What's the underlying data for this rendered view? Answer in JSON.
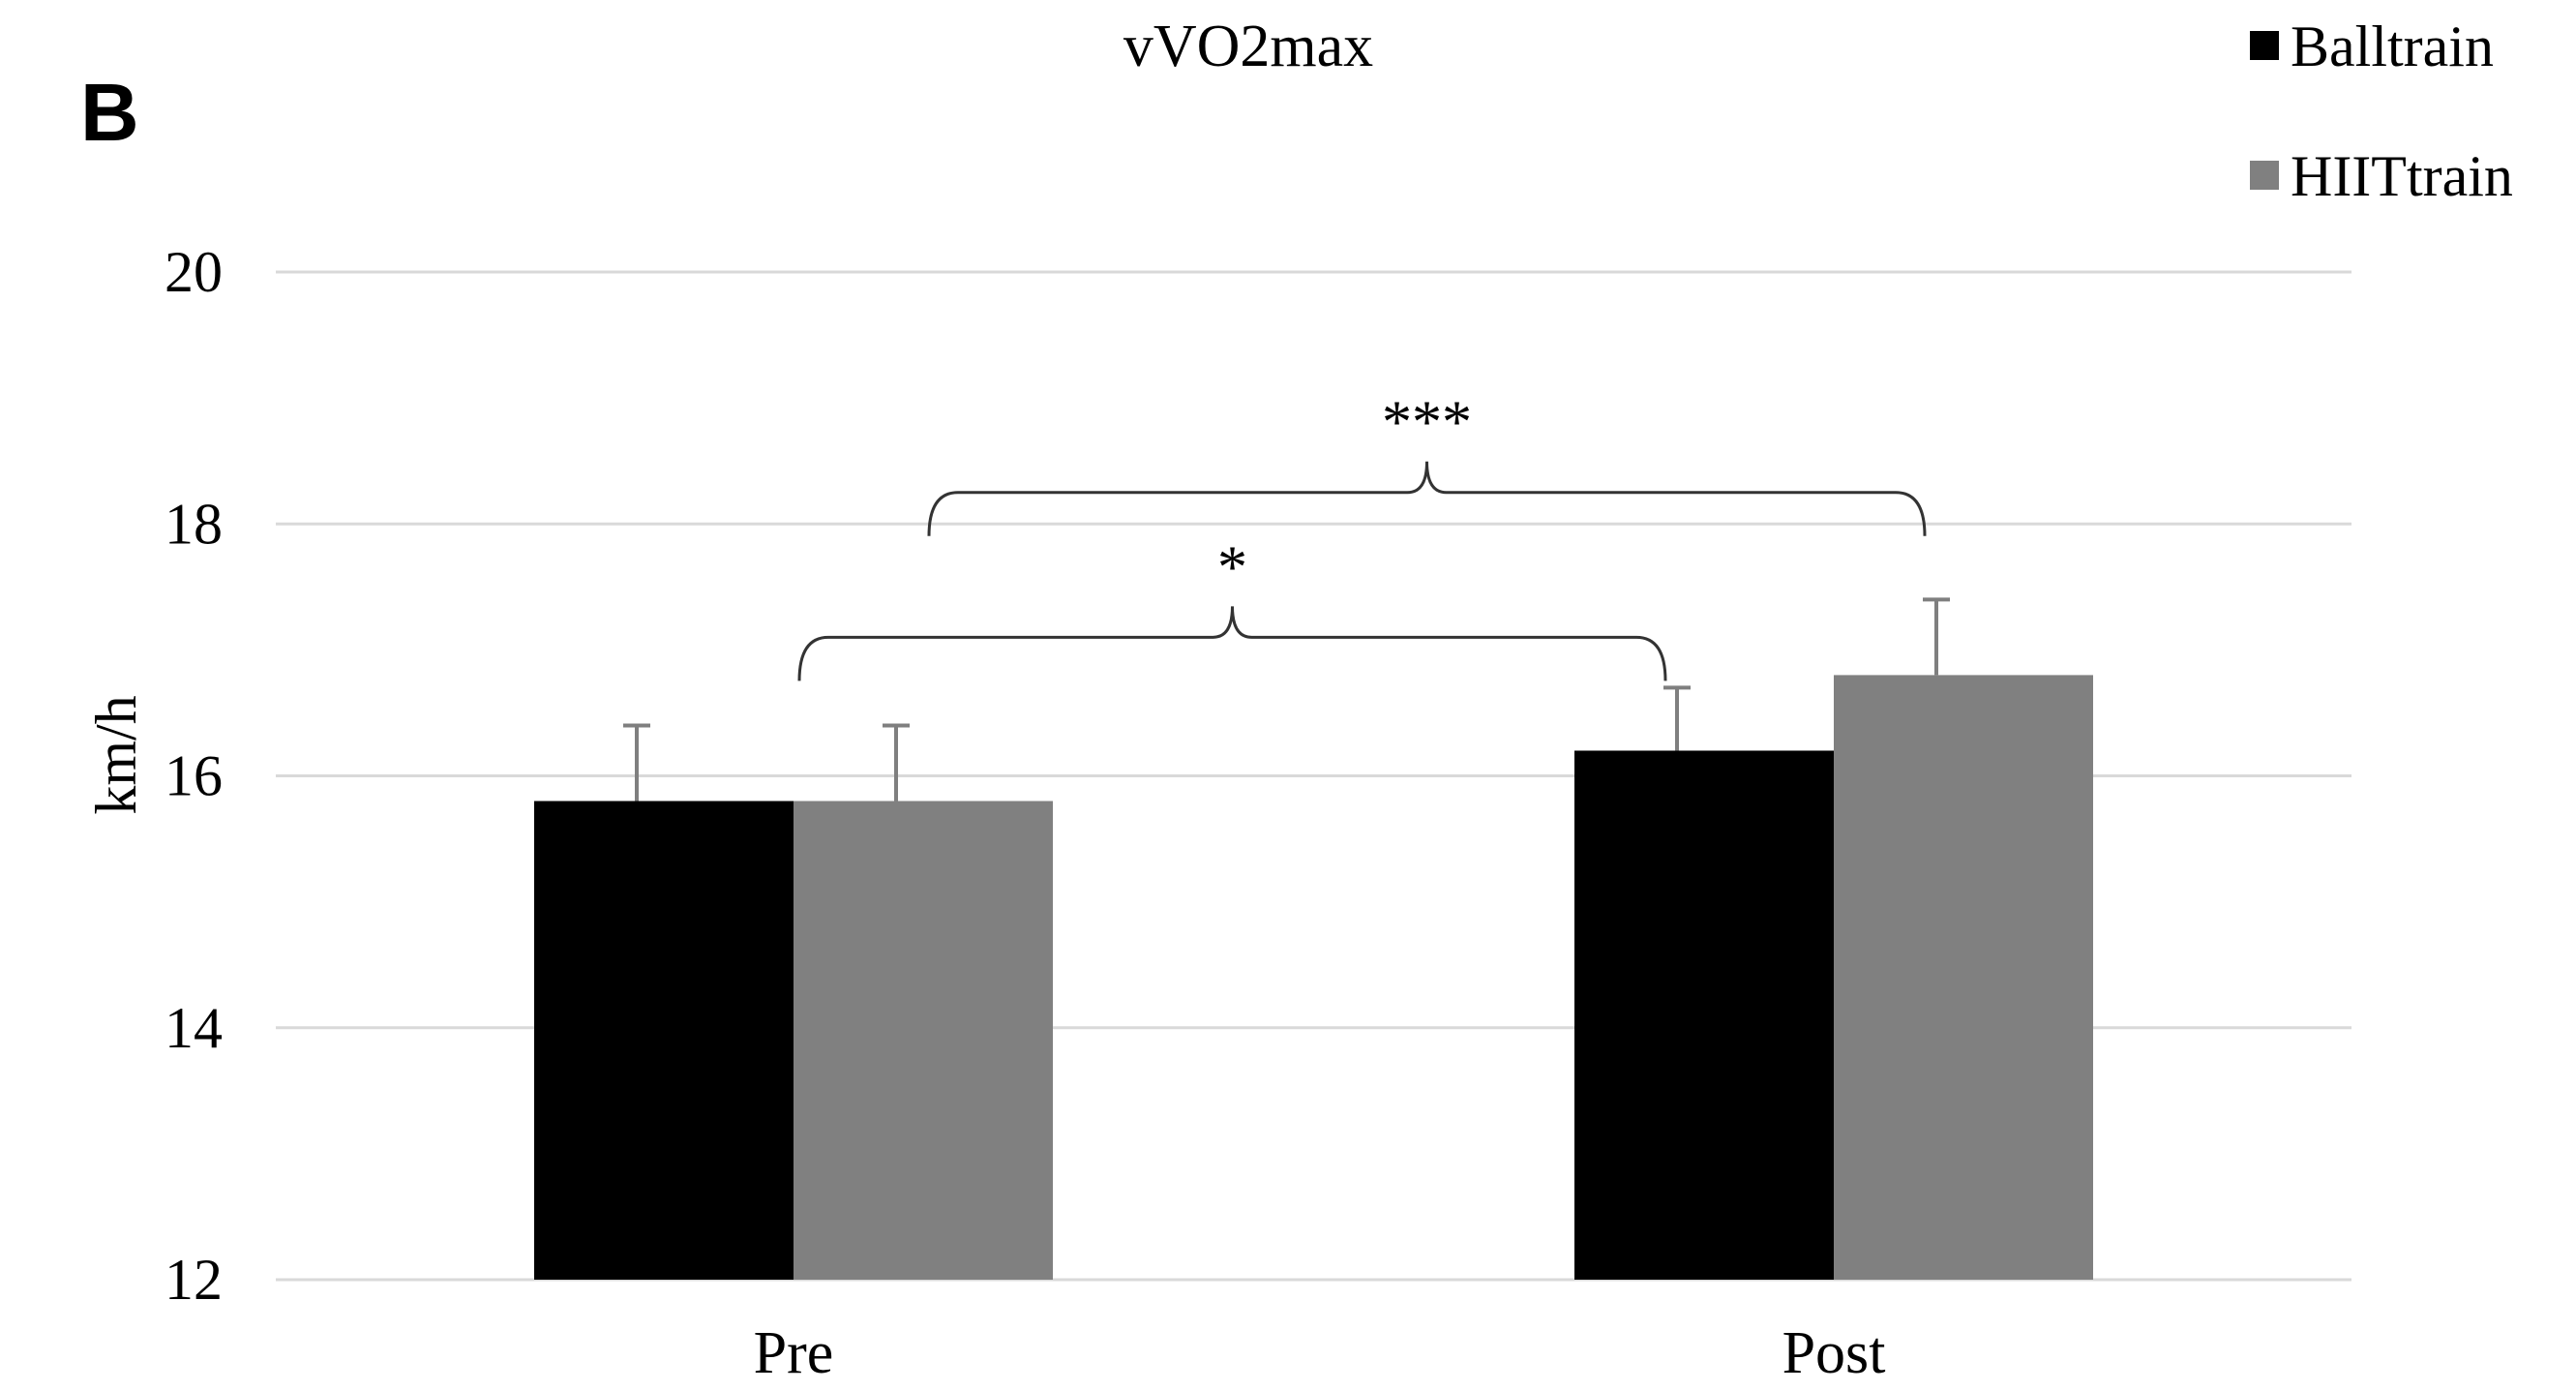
{
  "panel_label": "B",
  "chart_data": {
    "type": "bar",
    "title": "vVO2max",
    "xlabel": "",
    "ylabel": "km/h",
    "ylim": [
      12,
      20
    ],
    "yticks": [
      12,
      14,
      16,
      18,
      20
    ],
    "grid": true,
    "legend_position": "top-right",
    "categories": [
      "Pre",
      "Post"
    ],
    "series": [
      {
        "name": "Balltrain",
        "color": "#000000",
        "values": [
          15.8,
          16.2
        ],
        "errors": [
          0.6,
          0.5
        ]
      },
      {
        "name": "HIITtrain",
        "color": "#808080",
        "values": [
          15.8,
          16.8
        ],
        "errors": [
          0.6,
          0.6
        ]
      }
    ],
    "annotations": [
      {
        "label": "*",
        "from": "Pre",
        "to": "Post",
        "series": "Balltrain",
        "at_value": 17.1
      },
      {
        "label": "***",
        "from": "Pre",
        "to": "Post",
        "series": "HIITtrain",
        "at_value": 18.25
      }
    ]
  }
}
